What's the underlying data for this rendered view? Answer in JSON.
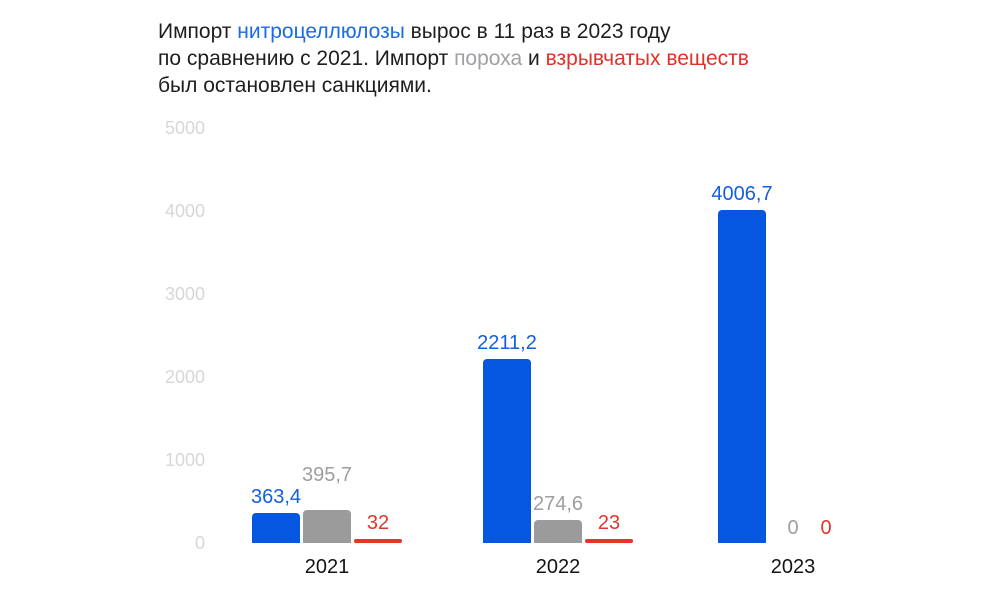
{
  "title": {
    "lines": [
      {
        "segments": [
          {
            "text": "Импорт ",
            "color": "dark"
          },
          {
            "text": "нитроцеллюлозы",
            "color": "blue"
          },
          {
            "text": " вырос в 11 раз в 2023 году",
            "color": "dark"
          }
        ]
      },
      {
        "segments": [
          {
            "text": "по сравнению с 2021. Импорт ",
            "color": "dark"
          },
          {
            "text": "пороха",
            "color": "gray"
          },
          {
            "text": " и ",
            "color": "dark"
          },
          {
            "text": "взрывчатых веществ",
            "color": "red"
          }
        ]
      },
      {
        "segments": [
          {
            "text": "был остановлен санкциями.",
            "color": "dark"
          }
        ]
      }
    ]
  },
  "colors": {
    "background": "#ffffff",
    "title_dark": "#1e1e20",
    "title_blue": "#1a6be4",
    "title_gray": "#9fa0a3",
    "title_red": "#e03228",
    "bar_blue": "#0556e0",
    "bar_gray": "#9b9b9b",
    "bar_red": "#e2352b",
    "value_blue": "#135fe0",
    "value_gray": "#9e9e9e",
    "value_red": "#e2352b",
    "axis_tick": "#d7d7d7",
    "category_label": "#141414"
  },
  "chart_data": {
    "type": "bar",
    "categories": [
      "2021",
      "2022",
      "2023"
    ],
    "series": [
      {
        "name": "нитроцеллюлозы",
        "color_key": "blue",
        "values": [
          363.4,
          2211.2,
          4006.7
        ],
        "labels": [
          "363,4",
          "2211,2",
          "4006,7"
        ]
      },
      {
        "name": "пороха",
        "color_key": "gray",
        "values": [
          395.7,
          274.6,
          0
        ],
        "labels": [
          "395,7",
          "274,6",
          "0"
        ]
      },
      {
        "name": "взрывчатых веществ",
        "color_key": "red",
        "values": [
          32,
          23,
          0
        ],
        "labels": [
          "32",
          "23",
          "0"
        ]
      }
    ],
    "ylabel": "",
    "xlabel": "",
    "ylim": [
      0,
      5000
    ],
    "yticks": [
      5000,
      4000,
      3000,
      2000,
      1000,
      0
    ],
    "grid": false,
    "legend_position": "none (series identified by colored words in title)"
  }
}
